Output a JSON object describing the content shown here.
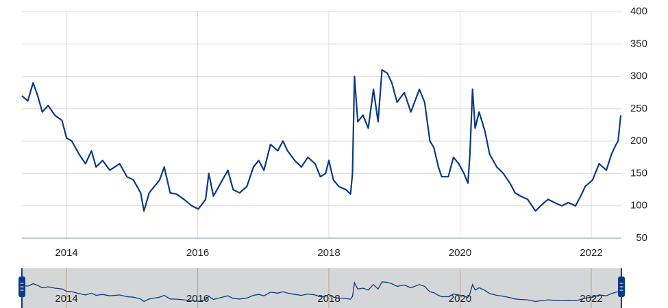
{
  "chart_data": {
    "type": "line",
    "x": [
      2013.32,
      2013.41,
      2013.49,
      2013.56,
      2013.63,
      2013.72,
      2013.82,
      2013.93,
      2014.0,
      2014.08,
      2014.19,
      2014.29,
      2014.38,
      2014.45,
      2014.55,
      2014.66,
      2014.81,
      2014.92,
      2015.02,
      2015.13,
      2015.18,
      2015.26,
      2015.34,
      2015.42,
      2015.49,
      2015.58,
      2015.68,
      2015.79,
      2015.91,
      2016.01,
      2016.12,
      2016.17,
      2016.24,
      2016.35,
      2016.46,
      2016.54,
      2016.64,
      2016.75,
      2016.85,
      2016.93,
      2017.01,
      2017.11,
      2017.22,
      2017.3,
      2017.37,
      2017.48,
      2017.58,
      2017.68,
      2017.79,
      2017.87,
      2017.95,
      2018.0,
      2018.07,
      2018.15,
      2018.26,
      2018.33,
      2018.36,
      2018.39,
      2018.44,
      2018.52,
      2018.6,
      2018.68,
      2018.75,
      2018.81,
      2018.89,
      2018.96,
      2019.04,
      2019.15,
      2019.25,
      2019.38,
      2019.46,
      2019.54,
      2019.6,
      2019.67,
      2019.72,
      2019.82,
      2019.9,
      2019.98,
      2020.06,
      2020.12,
      2020.15,
      2020.19,
      2020.23,
      2020.29,
      2020.38,
      2020.45,
      2020.56,
      2020.66,
      2020.76,
      2020.84,
      2020.92,
      2021.03,
      2021.15,
      2021.23,
      2021.34,
      2021.44,
      2021.55,
      2021.65,
      2021.76,
      2021.84,
      2021.91,
      2022.02,
      2022.12,
      2022.23,
      2022.31,
      2022.38,
      2022.41,
      2022.45
    ],
    "values": [
      270,
      262,
      290,
      270,
      245,
      255,
      240,
      232,
      205,
      200,
      180,
      165,
      185,
      160,
      170,
      155,
      165,
      145,
      140,
      120,
      92,
      120,
      130,
      140,
      160,
      120,
      118,
      110,
      100,
      95,
      110,
      150,
      115,
      135,
      155,
      125,
      120,
      130,
      160,
      170,
      155,
      195,
      185,
      200,
      185,
      170,
      160,
      175,
      165,
      145,
      150,
      170,
      140,
      130,
      125,
      118,
      150,
      300,
      230,
      240,
      220,
      280,
      230,
      310,
      305,
      290,
      260,
      275,
      245,
      280,
      260,
      200,
      190,
      160,
      145,
      145,
      175,
      165,
      150,
      135,
      180,
      280,
      220,
      245,
      215,
      180,
      160,
      150,
      135,
      120,
      115,
      110,
      92,
      100,
      110,
      105,
      100,
      105,
      100,
      115,
      130,
      140,
      165,
      155,
      180,
      195,
      200,
      240
    ],
    "color": "#0b3a84",
    "xlim": [
      2013.32,
      2022.46
    ],
    "xticks": [
      2014,
      2016,
      2018,
      2020,
      2022
    ],
    "ylim": [
      50,
      400
    ],
    "yticks": [
      50,
      100,
      150,
      200,
      250,
      300,
      350,
      400
    ],
    "grid": true,
    "navigator": true
  }
}
